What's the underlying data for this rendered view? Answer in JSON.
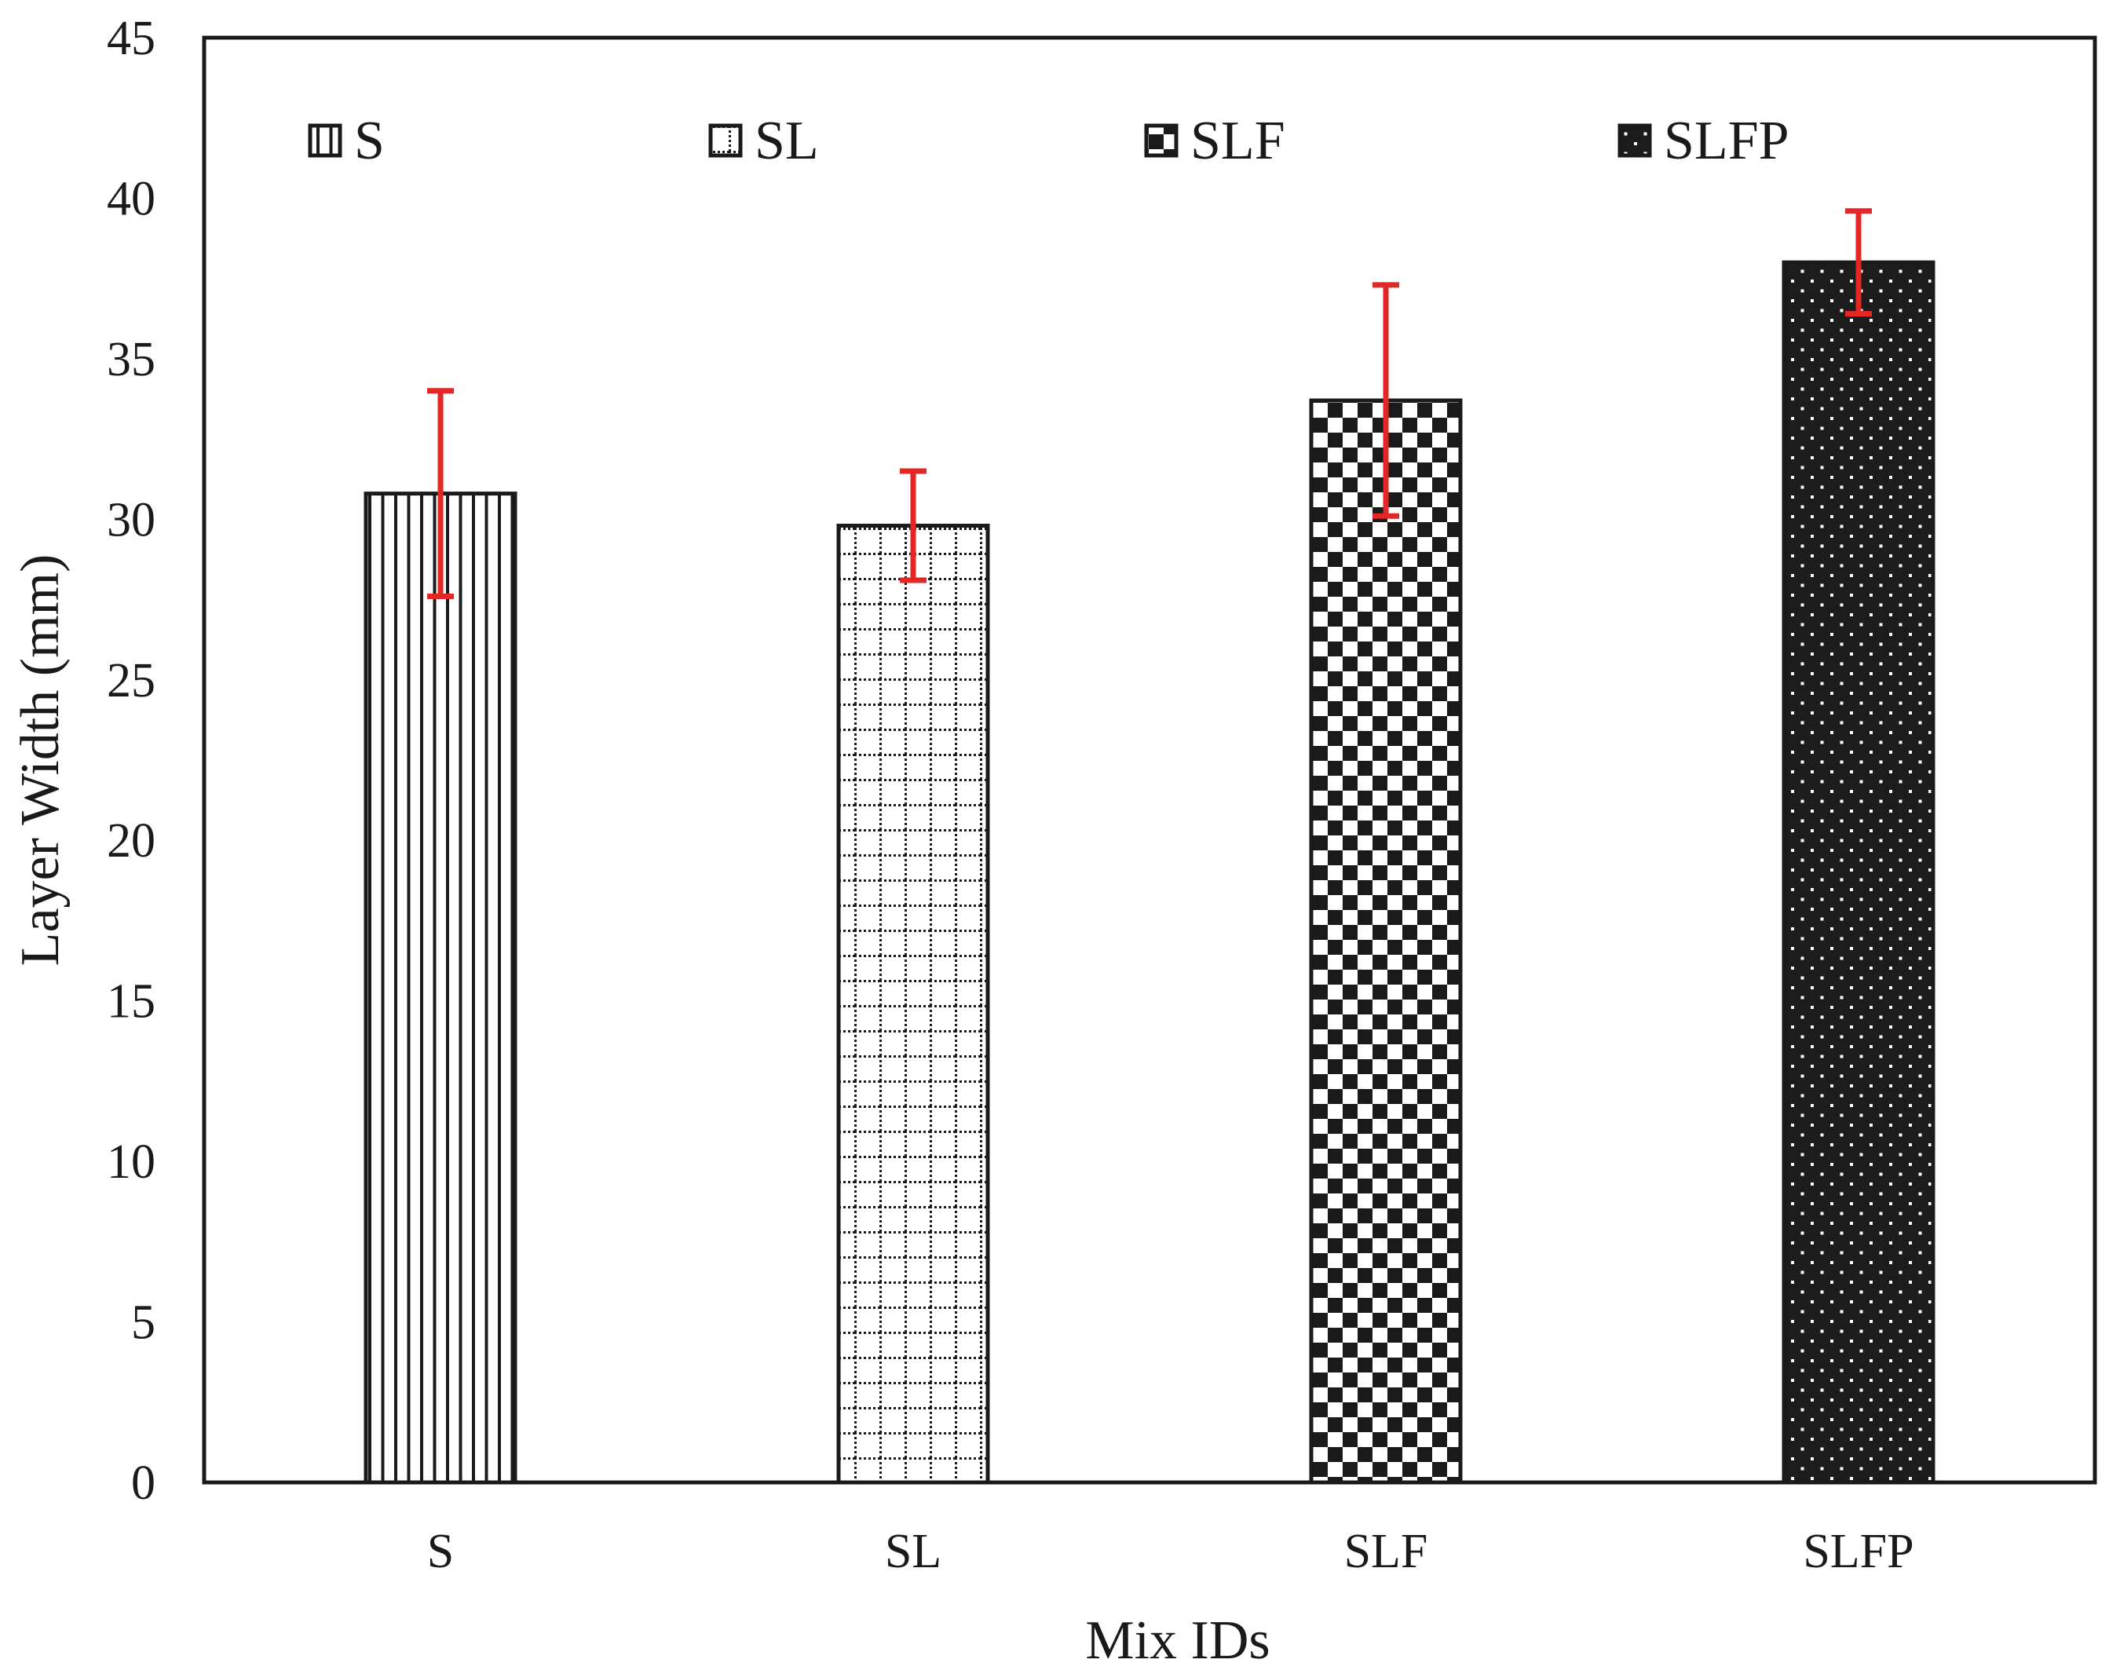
{
  "chart_data": {
    "type": "bar",
    "title": "",
    "xlabel": "Mix IDs",
    "ylabel": "Layer Width (mm)",
    "ylim": [
      0,
      45
    ],
    "yticks": [
      0,
      5,
      10,
      15,
      20,
      25,
      30,
      35,
      40,
      45
    ],
    "grid": false,
    "legend_position": "top",
    "categories": [
      "S",
      "SL",
      "SLF",
      "SLFP"
    ],
    "values": [
      30.8,
      29.8,
      33.7,
      38.0
    ],
    "error_low": [
      3.2,
      1.7,
      3.6,
      1.6
    ],
    "error_high": [
      3.2,
      1.7,
      3.6,
      1.6
    ],
    "error_bar_color": "#e32626",
    "series_patterns": [
      "vertical-lines",
      "dotted-grid",
      "checkerboard",
      "dark-dots"
    ],
    "legend": [
      "S",
      "SL",
      "SLF",
      "SLFP"
    ]
  }
}
